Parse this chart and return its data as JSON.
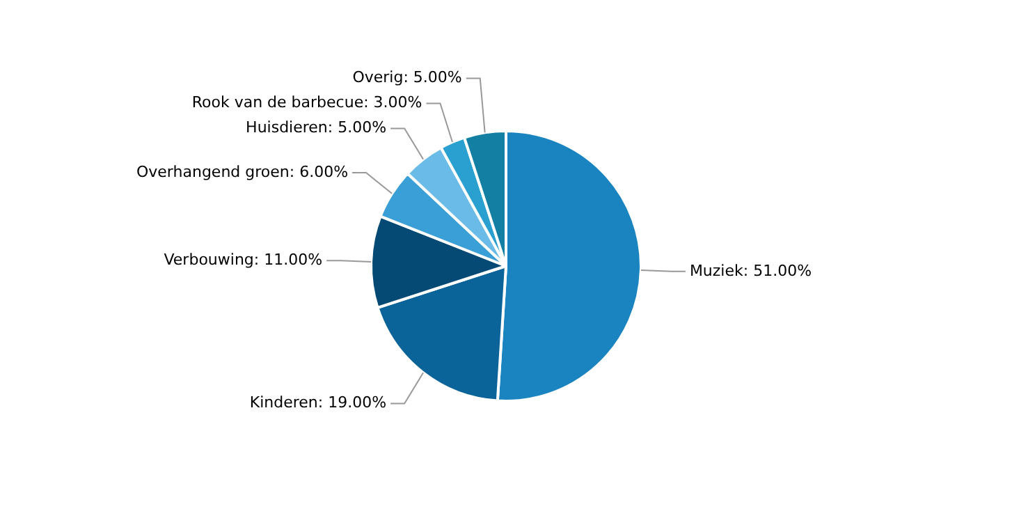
{
  "chart_data": {
    "type": "pie",
    "categories": [
      "Muziek",
      "Kinderen",
      "Verbouwing",
      "Overhangend groen",
      "Huisdieren",
      "Rook van de barbecue",
      "Overig"
    ],
    "values": [
      51,
      19,
      11,
      6,
      5,
      3,
      5
    ],
    "value_labels": [
      "51.00%",
      "19.00%",
      "11.00%",
      "6.00%",
      "5.00%",
      "3.00%",
      "5.00%"
    ],
    "colors": [
      "#1a84c0",
      "#0a6399",
      "#054a75",
      "#3a9fd6",
      "#6bbbe9",
      "#2aa0d0",
      "#127fa3"
    ],
    "legend": false
  }
}
